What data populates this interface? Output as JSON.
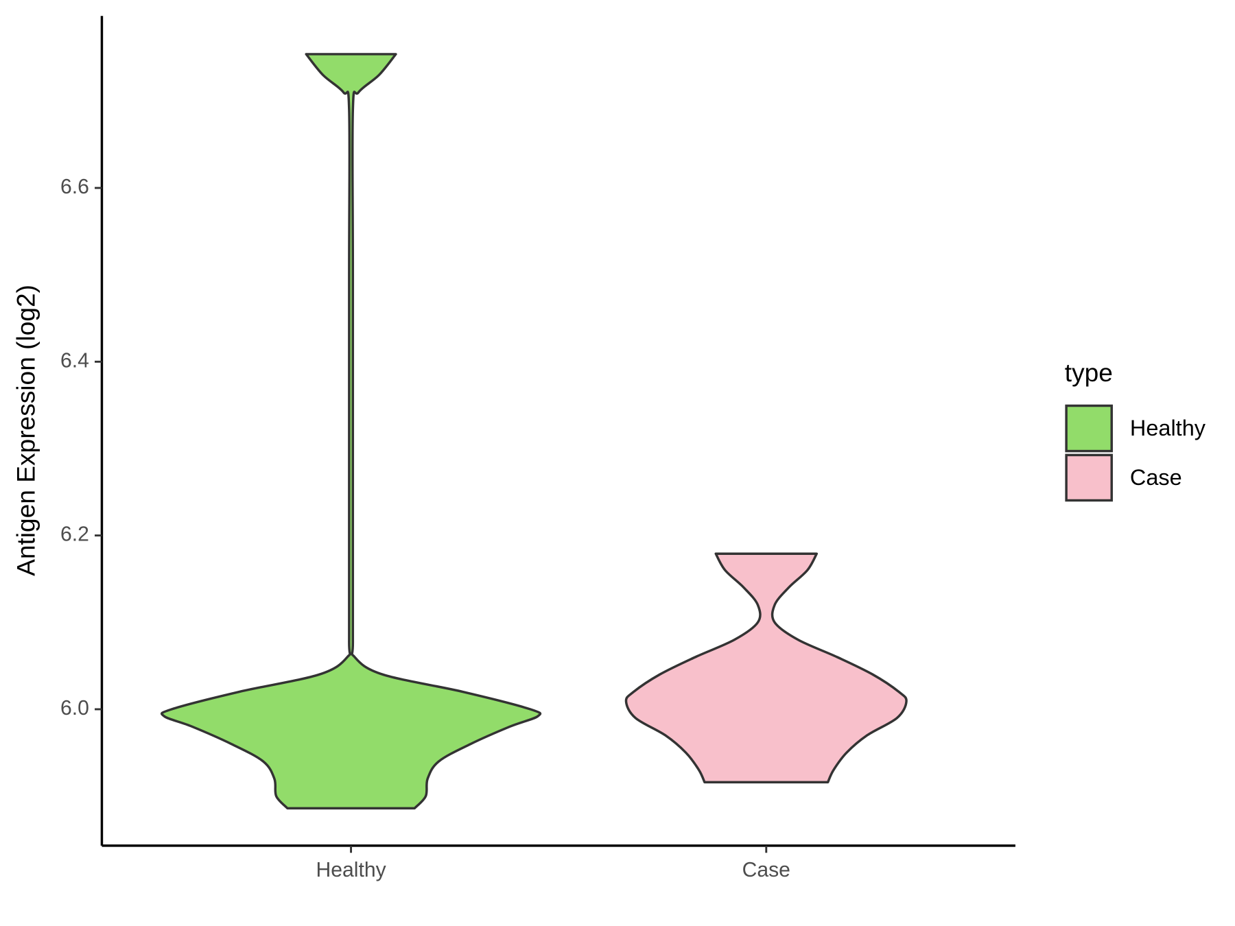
{
  "chart_data": {
    "type": "violin",
    "y_label": "Antigen Expression (log2)",
    "categories": [
      "Healthy",
      "Case"
    ],
    "ylim": [
      5.843,
      6.798
    ],
    "yticks": [
      {
        "value": 6.0,
        "label": "6.0"
      },
      {
        "value": 6.2,
        "label": "6.2"
      },
      {
        "value": 6.4,
        "label": "6.4"
      },
      {
        "value": 6.6,
        "label": "6.6"
      }
    ],
    "legend_title": "type",
    "legend_position": "right",
    "series": [
      {
        "name": "Healthy",
        "color": "#92dc6a",
        "y": [
          5.886,
          5.9,
          5.92,
          5.94,
          5.96,
          5.98,
          5.992,
          6.0,
          6.02,
          6.04,
          6.06,
          6.08,
          6.2,
          6.5,
          6.69,
          6.71,
          6.73,
          6.754
        ],
        "density": [
          0.34,
          0.4,
          0.41,
          0.47,
          0.64,
          0.85,
          1.0,
          0.96,
          0.6,
          0.17,
          0.02,
          0.01,
          0.01,
          0.01,
          0.01,
          0.04,
          0.15,
          0.24
        ]
      },
      {
        "name": "Case",
        "color": "#f8c0cb",
        "y": [
          5.916,
          5.93,
          5.95,
          5.97,
          5.99,
          6.009,
          6.02,
          6.04,
          6.06,
          6.08,
          6.1,
          6.12,
          6.14,
          6.16,
          6.179
        ],
        "density": [
          0.33,
          0.36,
          0.43,
          0.54,
          0.7,
          0.75,
          0.71,
          0.57,
          0.38,
          0.17,
          0.045,
          0.045,
          0.12,
          0.22,
          0.27
        ]
      }
    ]
  }
}
